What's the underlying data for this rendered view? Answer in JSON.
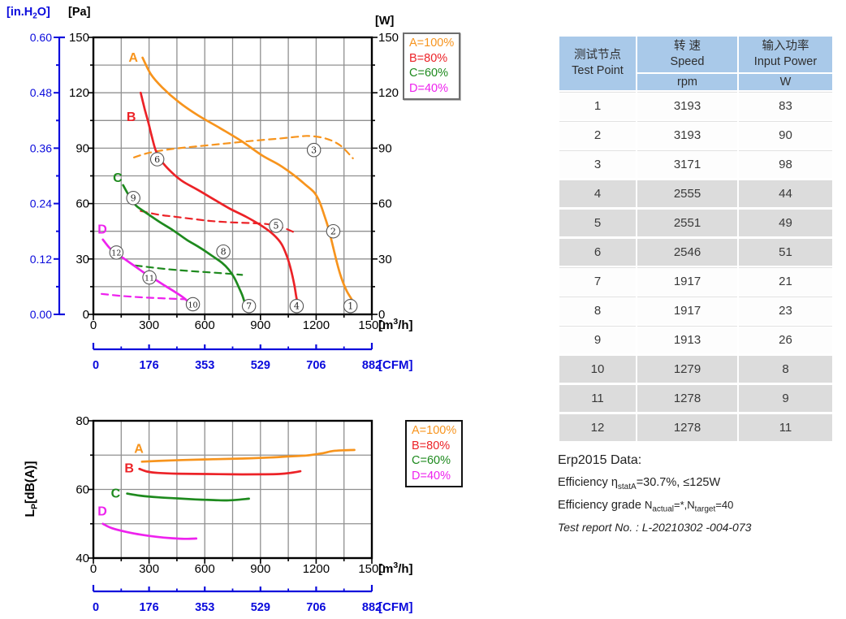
{
  "colors": {
    "orange": "#F7941D",
    "red": "#EC2227",
    "green": "#1E8A1E",
    "magenta": "#EE22EE",
    "blue": "#0A0ADC",
    "grid": "#909090",
    "axis": "#000000",
    "marker_ring": "#555555",
    "table_header_bg": "#A9C9E9",
    "table_shaded_bg": "#DCDCDC"
  },
  "legend": {
    "entries": [
      {
        "label": "A=100%",
        "color_key": "orange"
      },
      {
        "label": "B=80%",
        "color_key": "red"
      },
      {
        "label": "C=60%",
        "color_key": "green"
      },
      {
        "label": "D=40%",
        "color_key": "magenta"
      }
    ]
  },
  "chart_data": [
    {
      "id": "performance-chart",
      "type": "line",
      "x_axis": {
        "label": "[m3/h]",
        "lim": [
          0,
          1500
        ],
        "ticks": [
          0,
          300,
          600,
          900,
          1200,
          1500
        ],
        "minor_step": 150
      },
      "x2_axis": {
        "label": "[CFM]",
        "ticks": [
          0,
          176,
          353,
          529,
          706,
          882
        ]
      },
      "y_axis_pa": {
        "label": "[Pa]",
        "lim": [
          0,
          150
        ],
        "ticks": [
          0,
          30,
          60,
          90,
          120,
          150
        ],
        "minor_step": 15
      },
      "y_axis_w": {
        "label": "[W]",
        "lim": [
          0,
          150
        ],
        "ticks": [
          0,
          30,
          60,
          90,
          120,
          150
        ]
      },
      "y_axis_inh2o": {
        "label": "[in.H2O]",
        "lim": [
          0,
          0.6
        ],
        "ticks": [
          "0.00",
          "0.12",
          "0.24",
          "0.36",
          "0.48",
          "0.60"
        ]
      },
      "legend_position": "top-right-outside",
      "grid": true,
      "series": [
        {
          "name": "A=100% pressure",
          "color_key": "orange",
          "dash": false,
          "points": [
            [
              265,
              139
            ],
            [
              310,
              130
            ],
            [
              370,
              123
            ],
            [
              460,
              115
            ],
            [
              560,
              108
            ],
            [
              680,
              101
            ],
            [
              795,
              94
            ],
            [
              910,
              86
            ],
            [
              1000,
              81
            ],
            [
              1085,
              75
            ],
            [
              1145,
              70
            ],
            [
              1190,
              66
            ],
            [
              1218,
              61
            ],
            [
              1246,
              53
            ],
            [
              1268,
              46
            ],
            [
              1290,
              37
            ],
            [
              1312,
              28
            ],
            [
              1335,
              20
            ],
            [
              1363,
              13
            ],
            [
              1392,
              8
            ],
            [
              1402,
              5
            ]
          ]
        },
        {
          "name": "A=100% input power",
          "color_key": "orange",
          "dash": true,
          "points": [
            [
              219,
              85
            ],
            [
              300,
              87.5
            ],
            [
              420,
              89.5
            ],
            [
              560,
              91
            ],
            [
              710,
              92.5
            ],
            [
              860,
              94
            ],
            [
              1000,
              95.2
            ],
            [
              1100,
              96.2
            ],
            [
              1160,
              96.6
            ],
            [
              1250,
              95.3
            ],
            [
              1330,
              91.5
            ],
            [
              1398,
              84.5
            ]
          ]
        },
        {
          "name": "B=80% pressure",
          "color_key": "red",
          "dash": false,
          "points": [
            [
              255,
              120
            ],
            [
              277,
              111
            ],
            [
              296,
              104
            ],
            [
              313,
              97
            ],
            [
              335,
              89
            ],
            [
              360,
              84
            ],
            [
              401,
              79
            ],
            [
              474,
              72.5
            ],
            [
              561,
              67.5
            ],
            [
              649,
              62.3
            ],
            [
              736,
              57.2
            ],
            [
              824,
              52.8
            ],
            [
              911,
              47.7
            ],
            [
              969,
              43.3
            ],
            [
              1013,
              38.2
            ],
            [
              1042,
              31.6
            ],
            [
              1064,
              24.3
            ],
            [
              1082,
              16.2
            ],
            [
              1093,
              9.6
            ],
            [
              1100,
              6
            ]
          ]
        },
        {
          "name": "B=80% input power",
          "color_key": "red",
          "dash": true,
          "points": [
            [
              255,
              56
            ],
            [
              350,
              54
            ],
            [
              430,
              53
            ],
            [
              550,
              51.5
            ],
            [
              640,
              50.5
            ],
            [
              750,
              49.8
            ],
            [
              860,
              49.4
            ],
            [
              950,
              48.7
            ],
            [
              1030,
              46.6
            ],
            [
              1078,
              44.6
            ]
          ]
        },
        {
          "name": "C=60% pressure",
          "color_key": "green",
          "dash": false,
          "points": [
            [
              160,
              70
            ],
            [
              182,
              66
            ],
            [
              204,
              62.3
            ],
            [
              233,
              58.6
            ],
            [
              284,
              55
            ],
            [
              357,
              50
            ],
            [
              430,
              45.5
            ],
            [
              503,
              40.4
            ],
            [
              576,
              36
            ],
            [
              641,
              31.6
            ],
            [
              692,
              28
            ],
            [
              729,
              24.3
            ],
            [
              758,
              20
            ],
            [
              783,
              14.8
            ],
            [
              802,
              10.4
            ],
            [
              816,
              6
            ]
          ]
        },
        {
          "name": "C=60% input power",
          "color_key": "green",
          "dash": true,
          "points": [
            [
              226,
              26.5
            ],
            [
              350,
              25
            ],
            [
              430,
              24.2
            ],
            [
              530,
              23.4
            ],
            [
              634,
              22.7
            ],
            [
              720,
              22.1
            ],
            [
              801,
              21.4
            ]
          ]
        },
        {
          "name": "D=40% pressure",
          "color_key": "magenta",
          "dash": false,
          "points": [
            [
              51,
              40.5
            ],
            [
              87,
              36
            ],
            [
              124,
              33
            ],
            [
              168,
              30
            ],
            [
              219,
              26.4
            ],
            [
              270,
              22.8
            ],
            [
              328,
              19.2
            ],
            [
              386,
              15.5
            ],
            [
              445,
              11.8
            ],
            [
              496,
              8.2
            ],
            [
              540,
              3.5
            ]
          ]
        },
        {
          "name": "D=40% input power",
          "color_key": "magenta",
          "dash": true,
          "points": [
            [
              44,
              11.1
            ],
            [
              150,
              10
            ],
            [
              250,
              9.3
            ],
            [
              350,
              8.8
            ],
            [
              440,
              8.4
            ],
            [
              497,
              8.2
            ]
          ]
        }
      ],
      "curve_labels": [
        {
          "text": "A",
          "x": 215,
          "y": 139,
          "color_key": "orange"
        },
        {
          "text": "B",
          "x": 204,
          "y": 107,
          "color_key": "red"
        },
        {
          "text": "C",
          "x": 131,
          "y": 74,
          "color_key": "green"
        },
        {
          "text": "D",
          "x": 48,
          "y": 46,
          "color_key": "magenta"
        }
      ],
      "markers": [
        {
          "n": "1",
          "x": 1385,
          "y": 4.5
        },
        {
          "n": "2",
          "x": 1292,
          "y": 45
        },
        {
          "n": "3",
          "x": 1188,
          "y": 89
        },
        {
          "n": "4",
          "x": 1095,
          "y": 4.5
        },
        {
          "n": "5",
          "x": 984,
          "y": 48
        },
        {
          "n": "6",
          "x": 344,
          "y": 84
        },
        {
          "n": "7",
          "x": 838,
          "y": 4.5
        },
        {
          "n": "8",
          "x": 700,
          "y": 34
        },
        {
          "n": "9",
          "x": 215,
          "y": 63
        },
        {
          "n": "10",
          "x": 536,
          "y": 5.5
        },
        {
          "n": "11",
          "x": 302,
          "y": 20
        },
        {
          "n": "12",
          "x": 124,
          "y": 33.5
        }
      ]
    },
    {
      "id": "noise-chart",
      "type": "line",
      "x_axis": {
        "label": "[m3/h]",
        "lim": [
          0,
          1500
        ],
        "ticks": [
          0,
          300,
          600,
          900,
          1200,
          1500
        ],
        "minor_step": 150
      },
      "x2_axis": {
        "label": "[CFM]",
        "ticks": [
          0,
          176,
          353,
          529,
          706,
          882
        ]
      },
      "y_axis": {
        "label": "LP[dB(A)]",
        "lim": [
          40,
          80
        ],
        "ticks": [
          40,
          60,
          80
        ],
        "grid_lines": [
          50,
          60,
          70
        ],
        "minor_ticks": [
          50,
          70
        ]
      },
      "legend_position": "top-right-outside",
      "grid": true,
      "series": [
        {
          "name": "A=100% noise",
          "color_key": "orange",
          "dash": false,
          "points": [
            [
              262,
              68.1
            ],
            [
              350,
              68.3
            ],
            [
              500,
              68.6
            ],
            [
              650,
              68.8
            ],
            [
              800,
              69
            ],
            [
              950,
              69.3
            ],
            [
              1050,
              69.6
            ],
            [
              1150,
              69.9
            ],
            [
              1230,
              70.5
            ],
            [
              1290,
              71.2
            ],
            [
              1350,
              71.4
            ],
            [
              1406,
              71.5
            ]
          ]
        },
        {
          "name": "B=80% noise",
          "color_key": "red",
          "dash": false,
          "points": [
            [
              248,
              66
            ],
            [
              290,
              65.2
            ],
            [
              350,
              64.8
            ],
            [
              450,
              64.6
            ],
            [
              600,
              64.5
            ],
            [
              750,
              64.4
            ],
            [
              900,
              64.4
            ],
            [
              1000,
              64.5
            ],
            [
              1060,
              64.8
            ],
            [
              1115,
              65.3
            ]
          ]
        },
        {
          "name": "C=60% noise",
          "color_key": "green",
          "dash": false,
          "points": [
            [
              182,
              58.8
            ],
            [
              250,
              58.2
            ],
            [
              350,
              57.7
            ],
            [
              450,
              57.4
            ],
            [
              550,
              57.1
            ],
            [
              650,
              56.9
            ],
            [
              720,
              56.8
            ],
            [
              780,
              57
            ],
            [
              838,
              57.3
            ]
          ]
        },
        {
          "name": "D=40% noise",
          "color_key": "magenta",
          "dash": false,
          "points": [
            [
              51,
              50
            ],
            [
              100,
              48.7
            ],
            [
              180,
              47.6
            ],
            [
              260,
              46.8
            ],
            [
              340,
              46.2
            ],
            [
              420,
              45.8
            ],
            [
              490,
              45.6
            ],
            [
              554,
              45.7
            ]
          ]
        }
      ],
      "curve_labels": [
        {
          "text": "A",
          "x": 245,
          "y": 71.8,
          "color_key": "orange"
        },
        {
          "text": "B",
          "x": 193,
          "y": 66.2,
          "color_key": "red"
        },
        {
          "text": "C",
          "x": 120,
          "y": 58.8,
          "color_key": "green"
        },
        {
          "text": "D",
          "x": 48,
          "y": 53.6,
          "color_key": "magenta"
        }
      ],
      "markers": []
    }
  ],
  "table": {
    "header": {
      "col1_zh": "测试节点",
      "col1_en": "Test Point",
      "col2_zh": "转 速",
      "col2_en": "Speed",
      "col2_unit": "rpm",
      "col3_zh": "输入功率",
      "col3_en": "Input Power",
      "col3_unit": "W"
    },
    "rows": [
      {
        "point": "1",
        "speed": "3193",
        "power": "83",
        "shaded": false
      },
      {
        "point": "2",
        "speed": "3193",
        "power": "90",
        "shaded": false
      },
      {
        "point": "3",
        "speed": "3171",
        "power": "98",
        "shaded": false
      },
      {
        "point": "4",
        "speed": "2555",
        "power": "44",
        "shaded": true
      },
      {
        "point": "5",
        "speed": "2551",
        "power": "49",
        "shaded": true
      },
      {
        "point": "6",
        "speed": "2546",
        "power": "51",
        "shaded": true
      },
      {
        "point": "7",
        "speed": "1917",
        "power": "21",
        "shaded": false
      },
      {
        "point": "8",
        "speed": "1917",
        "power": "23",
        "shaded": false
      },
      {
        "point": "9",
        "speed": "1913",
        "power": "26",
        "shaded": false
      },
      {
        "point": "10",
        "speed": "1279",
        "power": "8",
        "shaded": true
      },
      {
        "point": "11",
        "speed": "1278",
        "power": "9",
        "shaded": true
      },
      {
        "point": "12",
        "speed": "1278",
        "power": "11",
        "shaded": true
      }
    ]
  },
  "erp": {
    "title": "Erp2015  Data:",
    "eff_prefix": "Efficiency η",
    "eff_sub": "statA",
    "eff_value": "=30.7%, ≤125W",
    "grade_prefix": "Efficiency grade ",
    "grade_n1": "N",
    "grade_sub1": "actual",
    "grade_mid": "=*,N",
    "grade_sub2": "target",
    "grade_value": "=40",
    "report": "Test report No. : L-20210302 -004-073"
  }
}
